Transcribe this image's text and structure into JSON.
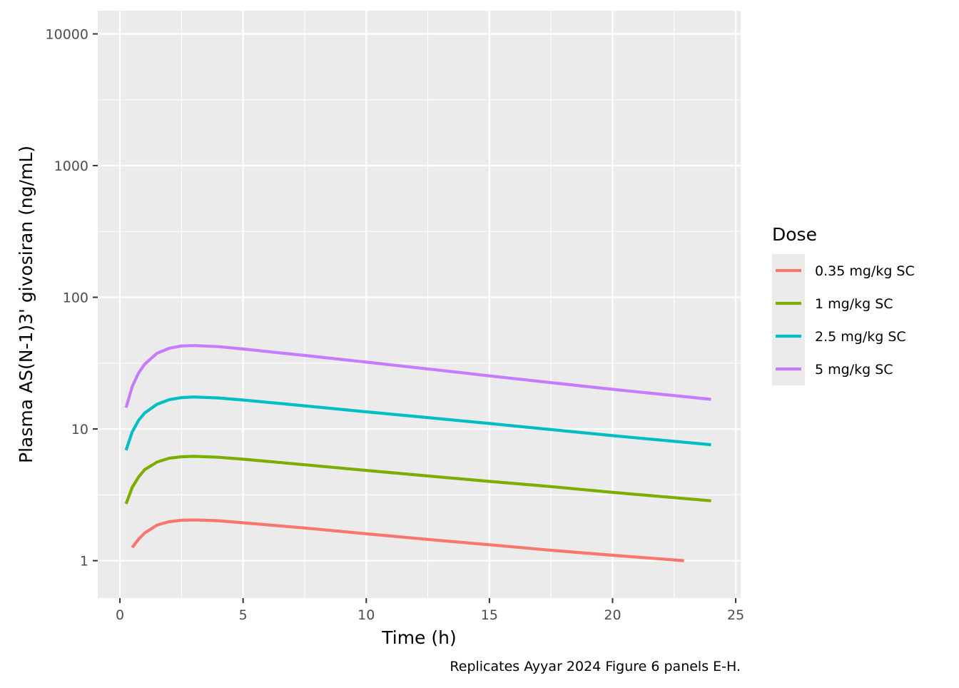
{
  "chart_data": {
    "type": "line",
    "title": "",
    "xlabel": "Time (h)",
    "ylabel": "Plasma AS(N-1)3' givosiran (ng/mL)",
    "caption": "Replicates Ayyar 2024 Figure 6 panels E-H.",
    "x_scale": "linear",
    "y_scale": "log10",
    "xlim": [
      -0.9,
      25.2
    ],
    "ylim": [
      0.52,
      15000
    ],
    "x_ticks": [
      0,
      5,
      10,
      15,
      20,
      25
    ],
    "x_tick_labels": [
      "0",
      "5",
      "10",
      "15",
      "20",
      "25"
    ],
    "y_ticks": [
      1,
      10,
      100,
      1000,
      10000
    ],
    "y_tick_labels": [
      "1",
      "10",
      "100",
      "1000",
      "10000"
    ],
    "grid": true,
    "legend": {
      "title": "Dose",
      "position": "right"
    },
    "series": [
      {
        "name": "0.35 mg/kg SC",
        "color": "#F8766D",
        "x": [
          0.5,
          0.75,
          1,
          1.5,
          2,
          2.5,
          3,
          4,
          5,
          7.5,
          10,
          12.5,
          15,
          17.5,
          20,
          22.9
        ],
        "y": [
          1.26,
          1.45,
          1.62,
          1.86,
          1.98,
          2.03,
          2.04,
          2.01,
          1.94,
          1.77,
          1.6,
          1.45,
          1.32,
          1.2,
          1.1,
          1.0
        ]
      },
      {
        "name": "1 mg/kg SC",
        "color": "#7CAE00",
        "x": [
          0.25,
          0.5,
          0.75,
          1,
          1.5,
          2,
          2.5,
          3,
          4,
          5,
          7.5,
          10,
          12.5,
          15,
          17.5,
          20,
          24
        ],
        "y": [
          2.7,
          3.6,
          4.3,
          4.9,
          5.6,
          6.0,
          6.15,
          6.2,
          6.1,
          5.9,
          5.35,
          4.85,
          4.4,
          4.0,
          3.65,
          3.3,
          2.85
        ]
      },
      {
        "name": "2.5 mg/kg SC",
        "color": "#00BFC4",
        "x": [
          0.25,
          0.5,
          0.75,
          1,
          1.5,
          2,
          2.5,
          3,
          4,
          5,
          7.5,
          10,
          12.5,
          15,
          17.5,
          20,
          24
        ],
        "y": [
          6.9,
          9.5,
          11.6,
          13.2,
          15.4,
          16.7,
          17.3,
          17.5,
          17.2,
          16.6,
          15.0,
          13.5,
          12.2,
          11.0,
          9.9,
          8.9,
          7.6
        ]
      },
      {
        "name": "5 mg/kg SC",
        "color": "#C77CFF",
        "x": [
          0.25,
          0.5,
          0.75,
          1,
          1.5,
          2,
          2.5,
          3,
          4,
          5,
          7.5,
          10,
          12.5,
          15,
          17.5,
          20,
          24
        ],
        "y": [
          14.5,
          21,
          26.5,
          31,
          37.5,
          41,
          42.7,
          43,
          42.2,
          40.5,
          36.2,
          32.2,
          28.6,
          25.3,
          22.5,
          20.0,
          16.8
        ]
      }
    ]
  },
  "colors": {
    "panel_background": "#EBEBEB",
    "grid_major": "#FFFFFF",
    "tick_color": "#333333"
  }
}
